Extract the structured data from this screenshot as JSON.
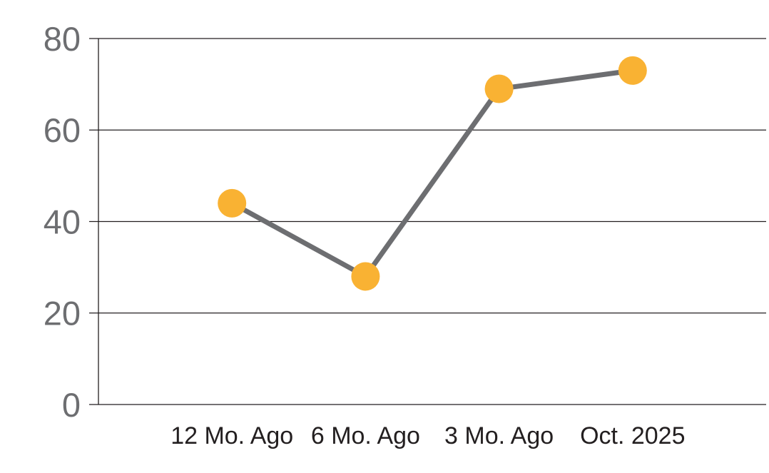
{
  "chart_data": {
    "type": "line",
    "categories": [
      "12 Mo. Ago",
      "6 Mo. Ago",
      "3 Mo. Ago",
      "Oct. 2025"
    ],
    "values": [
      44,
      28,
      69,
      73
    ],
    "ylim": [
      0,
      80
    ],
    "yticks": [
      0,
      20,
      40,
      60,
      80
    ],
    "grid": "horizontal",
    "legend": "none",
    "colors": {
      "marker": "#F9B233",
      "line": "#6D6E71",
      "gridline": "#231F20",
      "y_tick_label": "#6D6E71",
      "x_tick_label": "#231F20",
      "background": "#FFFFFF"
    }
  }
}
